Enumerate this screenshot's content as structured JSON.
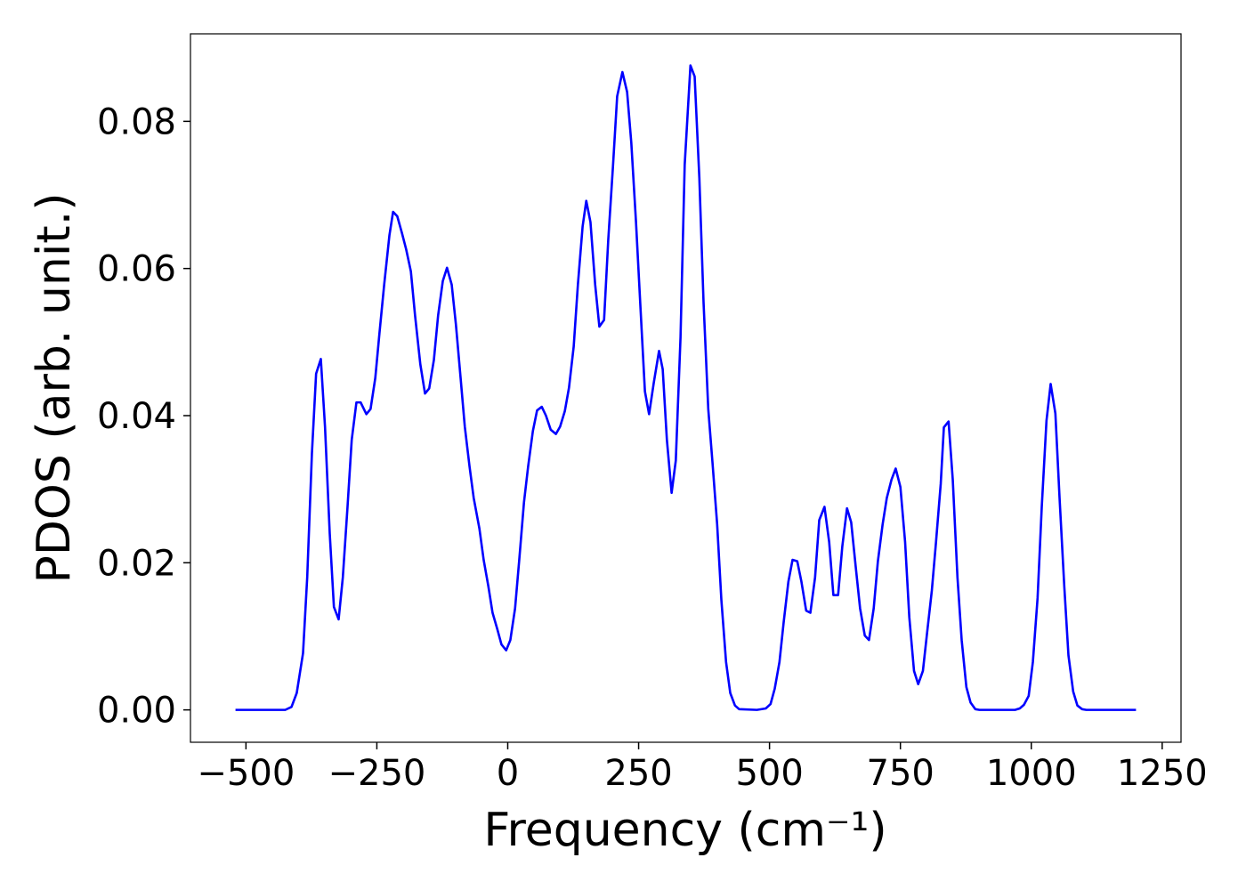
{
  "chart_data": {
    "type": "line",
    "x_label": "Frequency (cm⁻¹)",
    "y_label": "PDOS (arb. unit.)",
    "xlim": [
      -606,
      1286
    ],
    "ylim": [
      -0.0044,
      0.0919
    ],
    "xticks": [
      {
        "value": -500,
        "label": "−500"
      },
      {
        "value": -250,
        "label": "−250"
      },
      0,
      250,
      500,
      750,
      1000,
      1250
    ],
    "yticks": [
      {
        "value": 0,
        "label": "0.00"
      },
      {
        "value": 0.02,
        "label": "0.02"
      },
      {
        "value": 0.04,
        "label": "0.04"
      },
      {
        "value": 0.06,
        "label": "0.06"
      },
      {
        "value": 0.08,
        "label": "0.08"
      }
    ],
    "grid": false,
    "series": [
      {
        "color": "#0000ff",
        "x": [
          -520,
          -425,
          -413,
          -403,
          -391,
          -383,
          -374,
          -366,
          -357,
          -349,
          -340,
          -332,
          -323,
          -315,
          -306,
          -298,
          -289,
          -281,
          -270,
          -262,
          -253,
          -245,
          -236,
          -226,
          -219,
          -211,
          -202,
          -194,
          -185,
          -177,
          -167,
          -158,
          -150,
          -141,
          -133,
          -124,
          -116,
          -107,
          -99,
          -90,
          -82,
          -73,
          -65,
          -54,
          -46,
          -37,
          -29,
          -20,
          -12,
          -3,
          5,
          14,
          22,
          31,
          39,
          48,
          56,
          65,
          73,
          82,
          92,
          100,
          109,
          117,
          126,
          134,
          143,
          150,
          158,
          167,
          175,
          184,
          192,
          201,
          209,
          219,
          228,
          236,
          245,
          253,
          262,
          270,
          279,
          289,
          296,
          304,
          313,
          321,
          330,
          338,
          349,
          357,
          366,
          374,
          383,
          391,
          400,
          408,
          417,
          425,
          434,
          442,
          476,
          493,
          502,
          510,
          519,
          527,
          536,
          544,
          553,
          561,
          570,
          578,
          587,
          595,
          605,
          614,
          622,
          631,
          639,
          648,
          656,
          665,
          673,
          682,
          690,
          699,
          707,
          716,
          724,
          733,
          741,
          750,
          759,
          767,
          776,
          784,
          793,
          801,
          810,
          818,
          827,
          833,
          842,
          850,
          859,
          867,
          876,
          884,
          893,
          901,
          969,
          978,
          986,
          995,
          1003,
          1012,
          1020,
          1029,
          1037,
          1046,
          1054,
          1063,
          1071,
          1080,
          1088,
          1097,
          1105,
          1200
        ],
        "values": [
          0,
          0,
          0.0004,
          0.0023,
          0.0077,
          0.018,
          0.0349,
          0.0457,
          0.0477,
          0.0385,
          0.024,
          0.014,
          0.0123,
          0.018,
          0.0276,
          0.0367,
          0.0418,
          0.0418,
          0.0402,
          0.0409,
          0.0451,
          0.0512,
          0.0578,
          0.0645,
          0.0677,
          0.0671,
          0.0648,
          0.0626,
          0.0596,
          0.0536,
          0.047,
          0.043,
          0.0437,
          0.0476,
          0.0536,
          0.0583,
          0.0601,
          0.0578,
          0.0524,
          0.0451,
          0.0385,
          0.0331,
          0.0288,
          0.0246,
          0.0204,
          0.0168,
          0.0132,
          0.011,
          0.0089,
          0.0081,
          0.0095,
          0.0138,
          0.0204,
          0.0282,
          0.0331,
          0.0379,
          0.0407,
          0.0412,
          0.04,
          0.0381,
          0.0375,
          0.0385,
          0.0406,
          0.0438,
          0.0494,
          0.0578,
          0.0657,
          0.0692,
          0.0663,
          0.0578,
          0.0521,
          0.053,
          0.0639,
          0.0739,
          0.0834,
          0.0867,
          0.084,
          0.0771,
          0.0663,
          0.0554,
          0.0433,
          0.0402,
          0.0445,
          0.0488,
          0.0463,
          0.0367,
          0.0295,
          0.0339,
          0.0506,
          0.0741,
          0.0876,
          0.0861,
          0.0723,
          0.0554,
          0.0409,
          0.0337,
          0.0252,
          0.015,
          0.0065,
          0.0023,
          0.0006,
          0.0001,
          0,
          0.0002,
          0.0008,
          0.0029,
          0.0065,
          0.0119,
          0.0174,
          0.0204,
          0.0202,
          0.0174,
          0.0135,
          0.0132,
          0.018,
          0.0258,
          0.0276,
          0.0228,
          0.0156,
          0.0156,
          0.0222,
          0.0274,
          0.0255,
          0.0192,
          0.0138,
          0.0101,
          0.0095,
          0.0138,
          0.0202,
          0.0252,
          0.0288,
          0.0313,
          0.0328,
          0.0303,
          0.0228,
          0.0126,
          0.0053,
          0.0035,
          0.0053,
          0.0105,
          0.0162,
          0.0228,
          0.0307,
          0.0384,
          0.0392,
          0.0313,
          0.018,
          0.0095,
          0.0031,
          0.001,
          0.0001,
          0,
          0,
          0.0002,
          0.0007,
          0.0019,
          0.0065,
          0.0152,
          0.0276,
          0.0393,
          0.0443,
          0.0403,
          0.0288,
          0.0168,
          0.0074,
          0.0025,
          0.0006,
          0.0001,
          0,
          0
        ]
      }
    ]
  }
}
